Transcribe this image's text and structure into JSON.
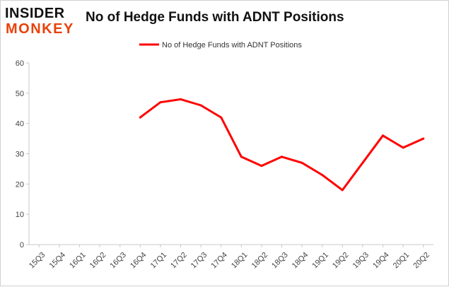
{
  "brand": {
    "logo_line1": "INSIDER",
    "logo_line2": "MONKEY",
    "logo_accent": "#e8420a"
  },
  "chart_data": {
    "type": "line",
    "title": "No of Hedge Funds with ADNT Positions",
    "xlabel": "",
    "ylabel": "",
    "categories": [
      "15Q3",
      "15Q4",
      "16Q1",
      "16Q2",
      "16Q3",
      "16Q4",
      "17Q1",
      "17Q2",
      "17Q3",
      "17Q4",
      "18Q1",
      "18Q2",
      "18Q3",
      "18Q4",
      "19Q1",
      "19Q2",
      "19Q3",
      "19Q4",
      "20Q1",
      "20Q2"
    ],
    "series": [
      {
        "name": "No of Hedge Funds with ADNT Positions",
        "color": "#ff0000",
        "values": [
          null,
          null,
          null,
          null,
          null,
          42,
          47,
          48,
          46,
          42,
          29,
          26,
          29,
          27,
          23,
          18,
          27,
          36,
          32,
          35
        ]
      }
    ],
    "ylim": [
      0,
      60
    ],
    "yticks": [
      0,
      10,
      20,
      30,
      40,
      50,
      60
    ],
    "grid": false,
    "legend_position": "top-center"
  }
}
